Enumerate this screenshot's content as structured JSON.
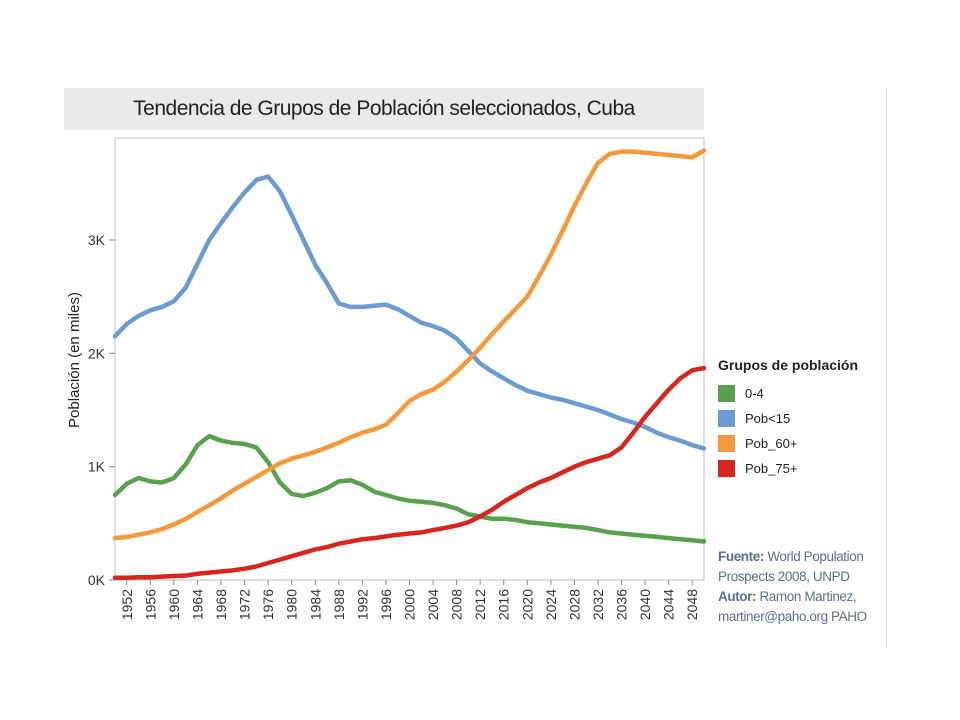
{
  "chart_data": {
    "type": "line",
    "title": "Tendencia de Grupos de Población seleccionados, Cuba",
    "ylabel": "Población (en miles)",
    "xlabel": "",
    "ylim": [
      0,
      3900
    ],
    "xlim": [
      1950,
      2050
    ],
    "y_ticks": [
      0,
      1000,
      2000,
      3000
    ],
    "y_tick_labels": [
      "0K",
      "1K",
      "2K",
      "3K"
    ],
    "x_ticks": [
      1952,
      1956,
      1960,
      1964,
      1968,
      1972,
      1976,
      1980,
      1984,
      1988,
      1992,
      1996,
      2000,
      2004,
      2008,
      2012,
      2016,
      2020,
      2024,
      2028,
      2032,
      2036,
      2040,
      2044,
      2048
    ],
    "x_tick_labels": [
      "1952",
      "1956",
      "1960",
      "1964",
      "1968",
      "1972",
      "1976",
      "1980",
      "1984",
      "1988",
      "1992",
      "1996",
      "2000",
      "2004",
      "2008",
      "2012",
      "2016",
      "2020",
      "2024",
      "2028",
      "2032",
      "2036",
      "2040",
      "2044",
      "2048"
    ],
    "x": [
      1950,
      1952,
      1954,
      1956,
      1958,
      1960,
      1962,
      1964,
      1966,
      1968,
      1970,
      1972,
      1974,
      1976,
      1978,
      1980,
      1982,
      1984,
      1986,
      1988,
      1990,
      1992,
      1994,
      1996,
      1998,
      2000,
      2002,
      2004,
      2006,
      2008,
      2010,
      2012,
      2014,
      2016,
      2018,
      2020,
      2022,
      2024,
      2026,
      2028,
      2030,
      2032,
      2034,
      2036,
      2038,
      2040,
      2042,
      2044,
      2046,
      2048,
      2050
    ],
    "series": [
      {
        "name": "0-4",
        "color": "#59a14f",
        "values": [
          750,
          850,
          900,
          870,
          860,
          900,
          1020,
          1190,
          1270,
          1230,
          1210,
          1200,
          1170,
          1040,
          860,
          760,
          740,
          770,
          810,
          870,
          880,
          840,
          780,
          750,
          720,
          700,
          690,
          680,
          660,
          630,
          580,
          560,
          540,
          540,
          530,
          510,
          500,
          490,
          480,
          470,
          460,
          440,
          420,
          410,
          400,
          390,
          380,
          370,
          360,
          350,
          340
        ]
      },
      {
        "name": "Pob<15",
        "color": "#6b9bd1",
        "values": [
          2150,
          2260,
          2330,
          2380,
          2410,
          2460,
          2580,
          2790,
          3000,
          3150,
          3290,
          3420,
          3530,
          3560,
          3430,
          3220,
          3000,
          2780,
          2620,
          2440,
          2410,
          2410,
          2420,
          2430,
          2390,
          2330,
          2270,
          2240,
          2200,
          2130,
          2020,
          1910,
          1840,
          1780,
          1720,
          1670,
          1640,
          1610,
          1590,
          1560,
          1530,
          1500,
          1460,
          1420,
          1390,
          1350,
          1300,
          1260,
          1230,
          1190,
          1160
        ]
      },
      {
        "name": "Pob_60+",
        "color": "#f49a3c",
        "values": [
          370,
          380,
          400,
          420,
          450,
          490,
          540,
          600,
          660,
          720,
          790,
          850,
          910,
          970,
          1030,
          1070,
          1100,
          1130,
          1170,
          1210,
          1260,
          1300,
          1330,
          1370,
          1470,
          1580,
          1640,
          1680,
          1750,
          1840,
          1940,
          2050,
          2170,
          2280,
          2390,
          2500,
          2680,
          2870,
          3080,
          3300,
          3500,
          3680,
          3760,
          3780,
          3780,
          3770,
          3760,
          3750,
          3740,
          3730,
          3790
        ]
      },
      {
        "name": "Pob_75+",
        "color": "#d7261e",
        "values": [
          20,
          20,
          25,
          25,
          30,
          35,
          40,
          55,
          65,
          75,
          85,
          100,
          120,
          150,
          180,
          210,
          240,
          270,
          290,
          320,
          340,
          360,
          370,
          385,
          400,
          410,
          420,
          440,
          460,
          480,
          510,
          560,
          620,
          690,
          750,
          810,
          860,
          900,
          950,
          1000,
          1040,
          1070,
          1100,
          1170,
          1300,
          1440,
          1560,
          1680,
          1780,
          1850,
          1870
        ]
      }
    ],
    "legend": {
      "title": "Grupos de población",
      "position": "right"
    },
    "grid": false
  },
  "source": {
    "fuente_label": "Fuente:",
    "fuente_text": "World Population Prospects  2008, UNPD",
    "autor_label": "Autor:",
    "autor_text": "Ramon Martinez, martiner@paho.org PAHO"
  }
}
